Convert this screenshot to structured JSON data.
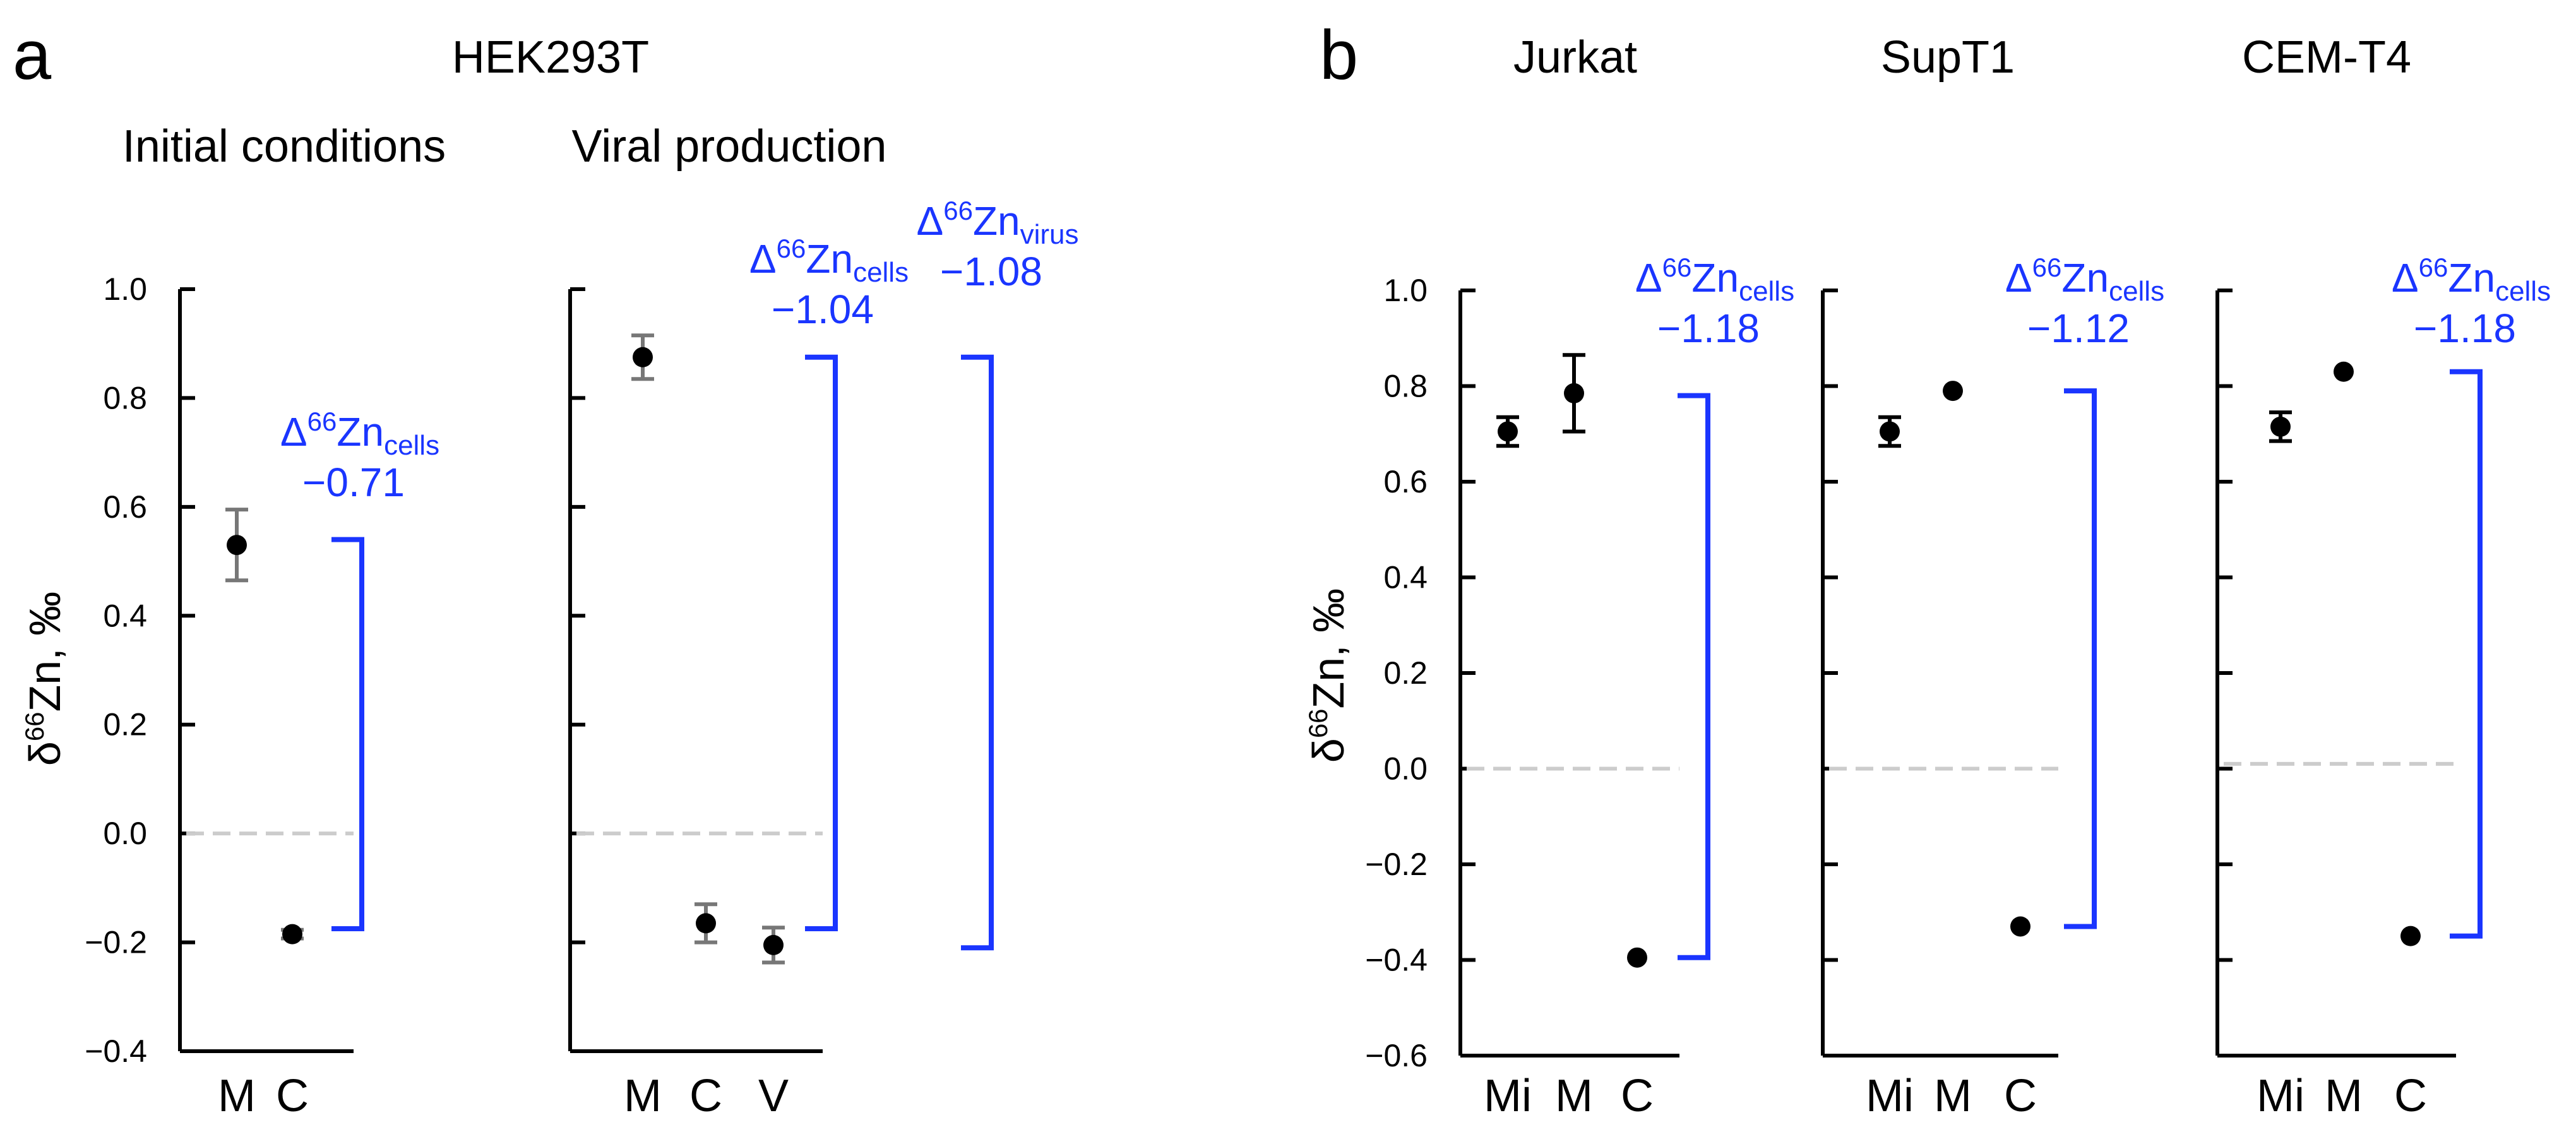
{
  "panel_letters": {
    "a": "a",
    "b": "b"
  },
  "colors": {
    "annotation": "#1a35ff",
    "errorbar_grey": "#777777",
    "errorbar_black": "#000000",
    "zero_line": "#cccccc"
  },
  "y_axis_label": {
    "delta": "δ",
    "mass": "66",
    "element": "Zn, ‰"
  },
  "chart_data": [
    {
      "id": "a1",
      "type": "scatter",
      "panel": "a",
      "cell_line": "HEK293T",
      "title": "Initial conditions",
      "ylabel": "δ66Zn, ‰",
      "ylim": [
        -0.4,
        1.0
      ],
      "yticks": [
        -0.4,
        -0.2,
        0.0,
        0.2,
        0.4,
        0.6,
        0.8,
        1.0
      ],
      "ytick_labels": [
        "−0.4",
        "−0.2",
        "0.0",
        "0.2",
        "0.4",
        "0.6",
        "0.8",
        "1.0"
      ],
      "categories": [
        "M",
        "C"
      ],
      "values": [
        0.53,
        -0.185
      ],
      "errors": [
        0.065,
        0.008
      ],
      "error_color": "#777777",
      "reference_line": 0.0,
      "annotations": [
        {
          "delta": "Δ",
          "mass": "66",
          "element": "Zn",
          "sub": "cells",
          "value": "−0.71",
          "from": 0.54,
          "to": -0.175
        }
      ]
    },
    {
      "id": "a2",
      "type": "scatter",
      "panel": "a",
      "cell_line": "HEK293T",
      "title": "Viral production",
      "ylim": [
        -0.4,
        1.0
      ],
      "yticks": [
        -0.4,
        -0.2,
        0.0,
        0.2,
        0.4,
        0.6,
        0.8,
        1.0
      ],
      "categories": [
        "M",
        "C",
        "V"
      ],
      "values": [
        0.875,
        -0.165,
        -0.205
      ],
      "errors": [
        0.04,
        0.035,
        0.032
      ],
      "error_color": "#777777",
      "reference_line": 0.0,
      "annotations": [
        {
          "delta": "Δ",
          "mass": "66",
          "element": "Zn",
          "sub": "cells",
          "value": "−1.04",
          "from": 0.875,
          "to": -0.175
        },
        {
          "delta": "Δ",
          "mass": "66",
          "element": "Zn",
          "sub": "virus",
          "value": "−1.08",
          "from": 0.875,
          "to": -0.21
        }
      ]
    },
    {
      "id": "b1",
      "type": "scatter",
      "panel": "b",
      "title": "Jurkat",
      "ylabel": "δ66Zn, ‰",
      "ylim": [
        -0.6,
        1.0
      ],
      "yticks": [
        -0.6,
        -0.4,
        -0.2,
        0.0,
        0.2,
        0.4,
        0.6,
        0.8,
        1.0
      ],
      "ytick_labels": [
        "−0.6",
        "−0.4",
        "−0.2",
        "0.0",
        "0.2",
        "0.4",
        "0.6",
        "0.8",
        "1.0"
      ],
      "categories": [
        "Mi",
        "M",
        "C"
      ],
      "values": [
        0.705,
        0.785,
        -0.395
      ],
      "errors": [
        0.03,
        0.08,
        0.0
      ],
      "error_color": "#000000",
      "reference_line": 0.0,
      "annotations": [
        {
          "delta": "Δ",
          "mass": "66",
          "element": "Zn",
          "sub": "cells",
          "value": "−1.18",
          "from": 0.78,
          "to": -0.395
        }
      ]
    },
    {
      "id": "b2",
      "type": "scatter",
      "panel": "b",
      "title": "SupT1",
      "ylim": [
        -0.6,
        1.0
      ],
      "yticks": [
        -0.6,
        -0.4,
        -0.2,
        0.0,
        0.2,
        0.4,
        0.6,
        0.8,
        1.0
      ],
      "categories": [
        "Mi",
        "M",
        "C"
      ],
      "values": [
        0.705,
        0.79,
        -0.33
      ],
      "errors": [
        0.03,
        0.0,
        0.0
      ],
      "error_color": "#000000",
      "reference_line": 0.0,
      "annotations": [
        {
          "delta": "Δ",
          "mass": "66",
          "element": "Zn",
          "sub": "cells",
          "value": "−1.12",
          "from": 0.79,
          "to": -0.33
        }
      ]
    },
    {
      "id": "b3",
      "type": "scatter",
      "panel": "b",
      "title": "CEM-T4",
      "ylim": [
        -0.6,
        1.0
      ],
      "yticks": [
        -0.6,
        -0.4,
        -0.2,
        0.0,
        0.2,
        0.4,
        0.6,
        0.8,
        1.0
      ],
      "categories": [
        "Mi",
        "M",
        "C"
      ],
      "values": [
        0.715,
        0.83,
        -0.35
      ],
      "errors": [
        0.03,
        0.0,
        0.0
      ],
      "error_color": "#000000",
      "reference_line": 0.01,
      "annotations": [
        {
          "delta": "Δ",
          "mass": "66",
          "element": "Zn",
          "sub": "cells",
          "value": "−1.18",
          "from": 0.83,
          "to": -0.35
        }
      ]
    }
  ]
}
